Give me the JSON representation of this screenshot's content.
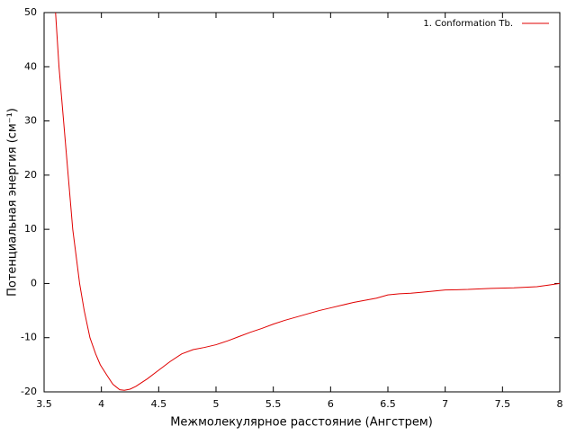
{
  "chart_data": {
    "type": "line",
    "xlabel": "Межмолекулярное расстояние (Ангстрем)",
    "ylabel": "Потенциальная энергия (см⁻¹)",
    "x": [
      3.6,
      3.63,
      3.67,
      3.71,
      3.75,
      3.78,
      3.81,
      3.85,
      3.9,
      3.95,
      3.99,
      4.05,
      4.1,
      4.16,
      4.2,
      4.25,
      4.3,
      4.4,
      4.5,
      4.6,
      4.7,
      4.8,
      4.9,
      5.0,
      5.1,
      5.2,
      5.3,
      5.4,
      5.5,
      5.6,
      5.7,
      5.8,
      5.9,
      6.0,
      6.1,
      6.2,
      6.3,
      6.4,
      6.5,
      6.6,
      6.7,
      6.8,
      6.9,
      7.0,
      7.2,
      7.4,
      7.6,
      7.8,
      7.9,
      8.0
    ],
    "series": [
      {
        "name": "1. Conformation Tb.",
        "color": "#e00000",
        "values": [
          50,
          40,
          30,
          20,
          10,
          5,
          0,
          -5,
          -10,
          -13,
          -15,
          -17,
          -18.6,
          -19.6,
          -19.7,
          -19.5,
          -19,
          -17.6,
          -16,
          -14.4,
          -13,
          -12.2,
          -11.8,
          -11.3,
          -10.6,
          -9.8,
          -9,
          -8.3,
          -7.5,
          -6.8,
          -6.2,
          -5.6,
          -5,
          -4.5,
          -4,
          -3.5,
          -3.1,
          -2.7,
          -2.1,
          -1.9,
          -1.8,
          -1.6,
          -1.4,
          -1.2,
          -1.1,
          -0.9,
          -0.8,
          -0.6,
          -0.3,
          0
        ]
      }
    ],
    "xlim": [
      3.5,
      8
    ],
    "xticks": [
      3.5,
      4,
      4.5,
      5,
      5.5,
      6,
      6.5,
      7,
      7.5,
      8
    ],
    "ylim": [
      -20,
      50
    ],
    "yticks": [
      -20,
      -10,
      0,
      10,
      20,
      30,
      40,
      50
    ],
    "grid": false,
    "legend": "top-right"
  }
}
